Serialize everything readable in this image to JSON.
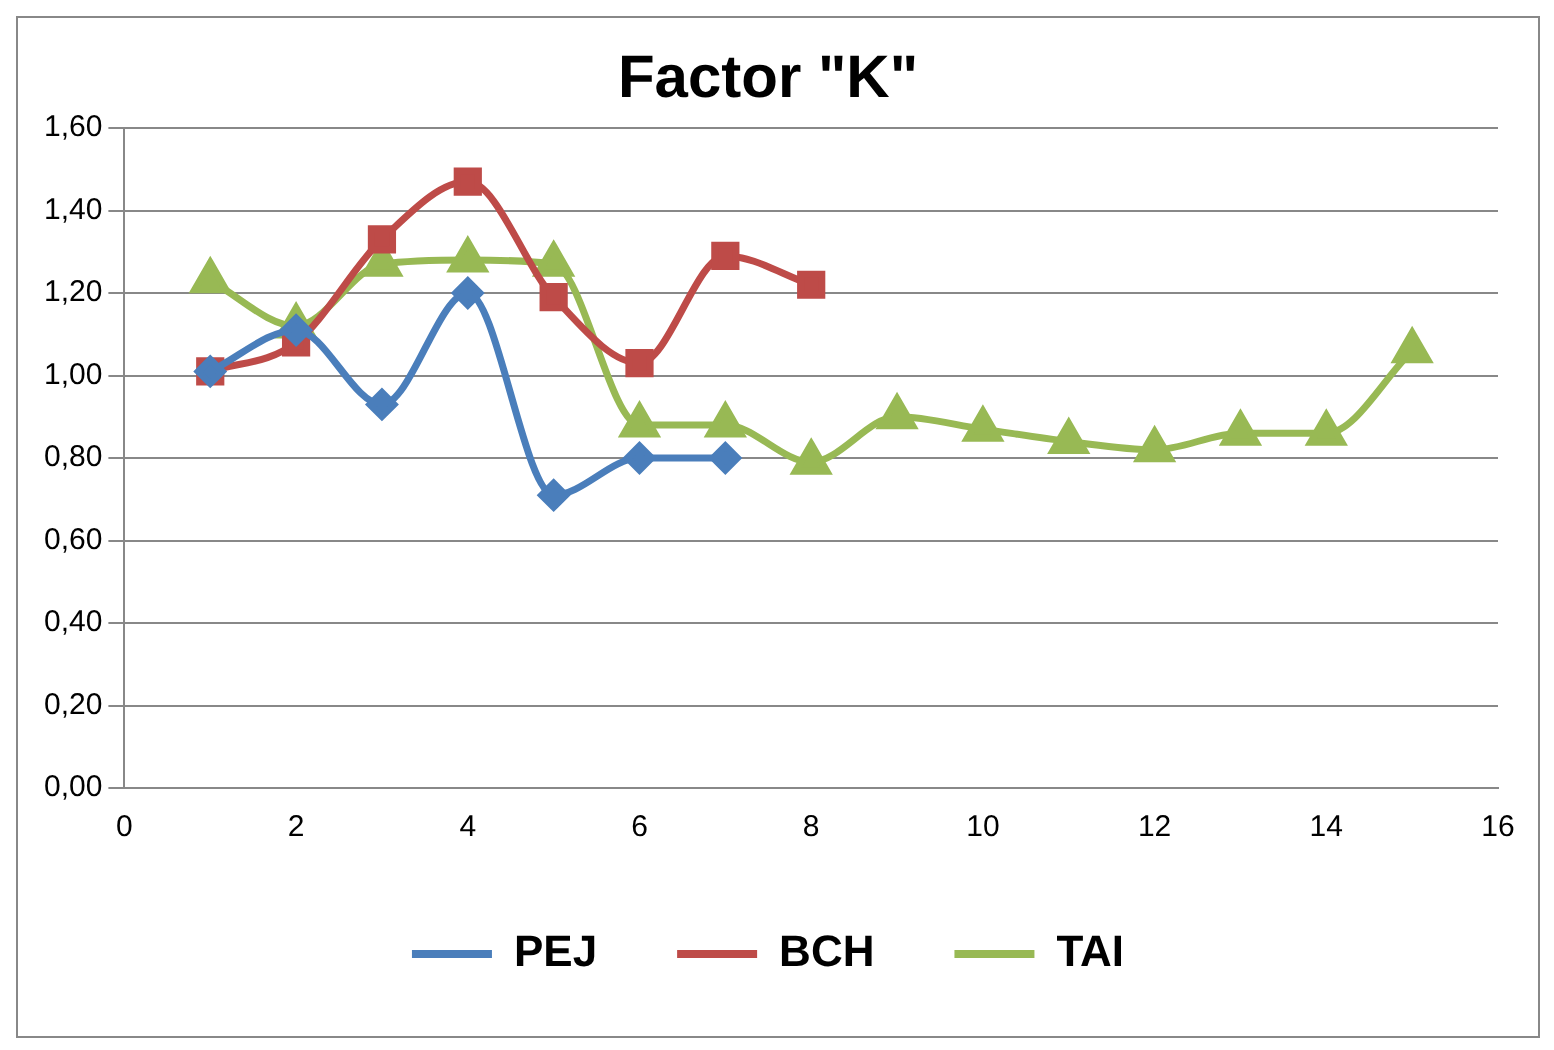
{
  "chart_data": {
    "type": "line",
    "title": "Factor \"K\"",
    "legend": "bottom",
    "grid": "y",
    "line_style": "solid",
    "xlim": [
      0,
      16
    ],
    "xticks": [
      0,
      2,
      4,
      6,
      8,
      10,
      12,
      14,
      16
    ],
    "ylim": [
      0,
      1.6
    ],
    "yticks": [
      {
        "value": 0,
        "label": "0,00"
      },
      {
        "value": 0.2,
        "label": "0,20"
      },
      {
        "value": 0.4,
        "label": "0,40"
      },
      {
        "value": 0.6,
        "label": "0,60"
      },
      {
        "value": 0.8,
        "label": "0,80"
      },
      {
        "value": 1.0,
        "label": "1,00"
      },
      {
        "value": 1.2,
        "label": "1,20"
      },
      {
        "value": 1.4,
        "label": "1,40"
      },
      {
        "value": 1.6,
        "label": "1,60"
      }
    ],
    "series": [
      {
        "name": "PEJ",
        "color": "#4a7ebb",
        "marker": "diamond",
        "x": [
          1,
          2,
          3,
          4,
          5,
          6,
          7
        ],
        "values": [
          1.01,
          1.11,
          0.93,
          1.2,
          0.71,
          0.8,
          0.8
        ]
      },
      {
        "name": "BCH",
        "color": "#be4b48",
        "marker": "square",
        "x": [
          1,
          2,
          3,
          4,
          5,
          6,
          7,
          8
        ],
        "values": [
          1.01,
          1.08,
          1.33,
          1.47,
          1.19,
          1.03,
          1.29,
          1.22
        ]
      },
      {
        "name": "TAI",
        "color": "#98b954",
        "marker": "triangle",
        "x": [
          1,
          2,
          3,
          4,
          5,
          6,
          7,
          8,
          9,
          10,
          11,
          12,
          13,
          14,
          15
        ],
        "values": [
          1.23,
          1.12,
          1.27,
          1.28,
          1.27,
          0.88,
          0.88,
          0.79,
          0.9,
          0.87,
          0.84,
          0.82,
          0.86,
          0.86,
          1.06
        ]
      }
    ]
  }
}
